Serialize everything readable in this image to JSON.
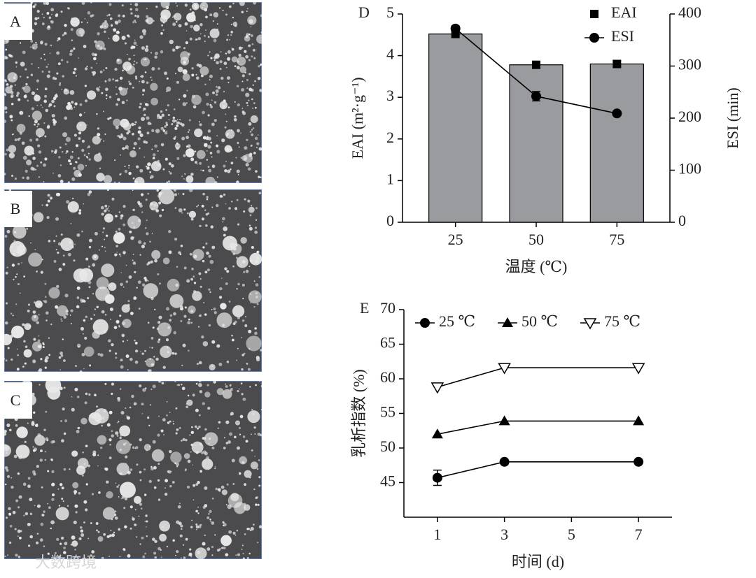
{
  "images": [
    {
      "label": "A"
    },
    {
      "label": "B"
    },
    {
      "label": "C"
    }
  ],
  "watermark": "大数跨境",
  "chart_data": [
    {
      "type": "bar",
      "panel": "D",
      "xlabel": "温度 (℃)",
      "ylabel": "EAI (m²·g⁻¹)",
      "y2label": "ESI (min)",
      "categories": [
        "25",
        "50",
        "75"
      ],
      "series": [
        {
          "name": "EAI",
          "color": "#999b9e",
          "marker": "square",
          "marker_color": "#000000",
          "values": [
            4.52,
            3.78,
            3.8
          ]
        },
        {
          "name": "ESI",
          "type": "line",
          "axis": "y2",
          "color": "#000000",
          "marker": "circle",
          "values": [
            372,
            242,
            209
          ],
          "errors": [
            5,
            9,
            3
          ]
        }
      ],
      "ylim": [
        0,
        5
      ],
      "yticks": [
        0,
        1,
        2,
        3,
        4,
        5
      ],
      "y2lim": [
        0,
        400
      ],
      "y2ticks": [
        0,
        100,
        200,
        300,
        400
      ],
      "legend": "upper right"
    },
    {
      "type": "line",
      "panel": "E",
      "xlabel": "时间 (d)",
      "ylabel": "乳析指数 (%)",
      "x": [
        1,
        3,
        7
      ],
      "series": [
        {
          "name": "25 ℃",
          "color": "#000000",
          "marker": "circle",
          "values": [
            45.7,
            48,
            48
          ],
          "errors": [
            1.1,
            0,
            0
          ]
        },
        {
          "name": "50 ℃",
          "color": "#000000",
          "marker": "triangle",
          "values": [
            52,
            53.9,
            53.9
          ]
        },
        {
          "name": "75 ℃",
          "color": "#000000",
          "marker": "open-triangle-down",
          "values": [
            58.8,
            61.6,
            61.6
          ]
        }
      ],
      "xlim": [
        0,
        8
      ],
      "xticks": [
        1,
        3,
        5,
        7
      ],
      "ylim": [
        40,
        70
      ],
      "yticks": [
        45,
        50,
        55,
        60,
        65,
        70
      ],
      "legend": "upper left"
    }
  ]
}
